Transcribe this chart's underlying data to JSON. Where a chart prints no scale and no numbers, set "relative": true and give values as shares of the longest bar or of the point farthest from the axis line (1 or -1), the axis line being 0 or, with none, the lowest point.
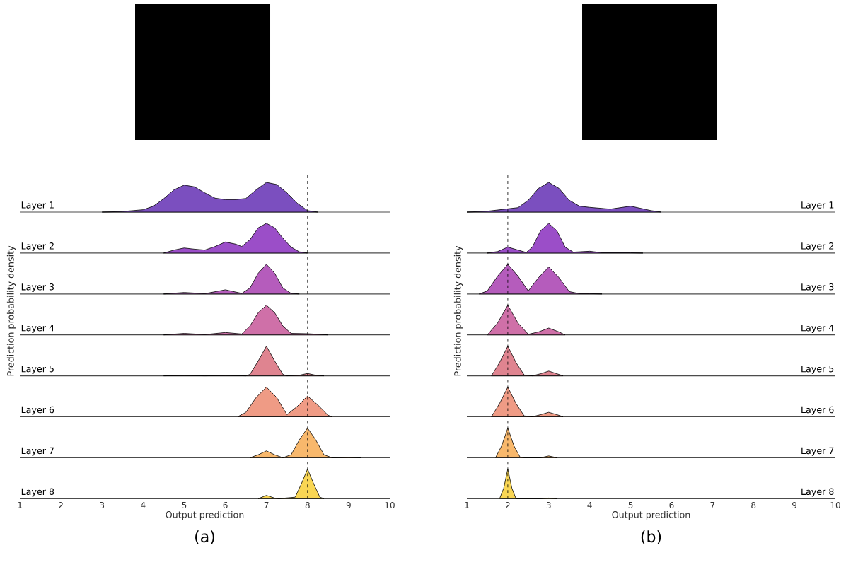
{
  "chart_data": [
    {
      "type": "area",
      "relative": true,
      "xlim": [
        1,
        10
      ],
      "tick_labels": false,
      "ref_lines": [
        {
          "axis": "x",
          "value": 8,
          "line_style": "dashed",
          "color": "#000000"
        }
      ],
      "series": [
        {
          "name": "Layer 1",
          "color": "#7b4fbf",
          "x": [
            3,
            3.5,
            4,
            4.25,
            4.5,
            4.75,
            5,
            5.25,
            5.5,
            5.75,
            6,
            6.25,
            6.5,
            6.75,
            7,
            7.25,
            7.5,
            7.75,
            8,
            8.25
          ],
          "values": [
            0,
            0.02,
            0.08,
            0.2,
            0.45,
            0.75,
            0.91,
            0.85,
            0.65,
            0.47,
            0.42,
            0.42,
            0.46,
            0.75,
            1.0,
            0.93,
            0.65,
            0.3,
            0.05,
            0
          ]
        }
      ]
    },
    {
      "type": "area",
      "relative": true,
      "xlim": [
        1,
        10
      ],
      "tick_labels": false,
      "ref_lines": [
        {
          "axis": "x",
          "value": 8,
          "line_style": "dashed",
          "color": "#000000"
        }
      ],
      "series": [
        {
          "name": "Layer 2",
          "color": "#9b4ec8",
          "x": [
            4.5,
            4.75,
            5,
            5.25,
            5.5,
            5.75,
            6,
            6.25,
            6.4,
            6.6,
            6.8,
            7,
            7.2,
            7.4,
            7.6,
            7.8,
            8
          ],
          "values": [
            0,
            0.1,
            0.17,
            0.13,
            0.1,
            0.22,
            0.37,
            0.3,
            0.22,
            0.45,
            0.85,
            1.0,
            0.85,
            0.5,
            0.2,
            0.04,
            0
          ]
        }
      ]
    },
    {
      "type": "area",
      "relative": true,
      "xlim": [
        1,
        10
      ],
      "tick_labels": false,
      "ref_lines": [
        {
          "axis": "x",
          "value": 8,
          "line_style": "dashed",
          "color": "#000000"
        }
      ],
      "series": [
        {
          "name": "Layer 3",
          "color": "#b55cbc",
          "x": [
            4.5,
            5,
            5.5,
            6,
            6.4,
            6.6,
            6.8,
            7,
            7.2,
            7.4,
            7.6,
            7.8
          ],
          "values": [
            0,
            0.05,
            0.01,
            0.14,
            0.02,
            0.2,
            0.7,
            1.0,
            0.7,
            0.2,
            0.02,
            0
          ]
        }
      ]
    },
    {
      "type": "area",
      "relative": true,
      "xlim": [
        1,
        10
      ],
      "tick_labels": false,
      "ref_lines": [
        {
          "axis": "x",
          "value": 8,
          "line_style": "dashed",
          "color": "#000000"
        }
      ],
      "series": [
        {
          "name": "Layer 4",
          "color": "#cf70a8",
          "x": [
            4.5,
            5,
            5.5,
            6,
            6.4,
            6.6,
            6.8,
            7,
            7.2,
            7.4,
            7.6,
            8,
            8.5
          ],
          "values": [
            0,
            0.05,
            0.01,
            0.08,
            0.03,
            0.3,
            0.75,
            1.0,
            0.75,
            0.3,
            0.05,
            0.04,
            0
          ]
        }
      ]
    },
    {
      "type": "area",
      "relative": true,
      "xlim": [
        1,
        10
      ],
      "tick_labels": false,
      "ylabel": "Prediction probability density",
      "ref_lines": [
        {
          "axis": "x",
          "value": 8,
          "line_style": "dashed",
          "color": "#000000"
        }
      ],
      "series": [
        {
          "name": "Layer 5",
          "color": "#df8490",
          "x": [
            4.5,
            5,
            5.5,
            6,
            6.5,
            6.6,
            6.8,
            7,
            7.2,
            7.4,
            7.5,
            7.8,
            8,
            8.2,
            8.4
          ],
          "values": [
            0,
            0.01,
            0,
            0.01,
            0,
            0.05,
            0.5,
            1.0,
            0.5,
            0.05,
            0,
            0.02,
            0.08,
            0.02,
            0
          ]
        }
      ]
    },
    {
      "type": "area",
      "relative": true,
      "xlim": [
        1,
        10
      ],
      "tick_labels": false,
      "ref_lines": [
        {
          "axis": "x",
          "value": 8,
          "line_style": "dashed",
          "color": "#000000"
        }
      ],
      "series": [
        {
          "name": "Layer 6",
          "color": "#ef9b85",
          "x": [
            6.3,
            6.5,
            6.75,
            7,
            7.25,
            7.5,
            7.75,
            8,
            8.25,
            8.5,
            8.6
          ],
          "values": [
            0,
            0.15,
            0.65,
            1.0,
            0.65,
            0.07,
            0.35,
            0.7,
            0.4,
            0.05,
            0
          ]
        }
      ]
    },
    {
      "type": "area",
      "relative": true,
      "xlim": [
        1,
        10
      ],
      "tick_labels": false,
      "ref_lines": [
        {
          "axis": "x",
          "value": 8,
          "line_style": "dashed",
          "color": "#000000"
        }
      ],
      "series": [
        {
          "name": "Layer 7",
          "color": "#f8b86c",
          "x": [
            6.6,
            6.8,
            7,
            7.2,
            7.4,
            7.6,
            7.8,
            8,
            8.2,
            8.4,
            8.6,
            9,
            9.3
          ],
          "values": [
            0,
            0.1,
            0.23,
            0.1,
            0,
            0.1,
            0.6,
            1.0,
            0.6,
            0.1,
            0,
            0.01,
            0
          ]
        }
      ]
    },
    {
      "type": "area",
      "relative": true,
      "xlim": [
        1,
        10
      ],
      "xticks": [
        1,
        2,
        3,
        4,
        5,
        6,
        7,
        8,
        9,
        10
      ],
      "tick_labels": "x",
      "xlabel": "Output prediction",
      "annotations": [
        "(a)"
      ],
      "ref_lines": [
        {
          "axis": "x",
          "value": 8,
          "line_style": "dashed",
          "color": "#000000"
        }
      ],
      "series": [
        {
          "name": "Layer 8",
          "color": "#f9d654",
          "x": [
            6.8,
            7,
            7.2,
            7.3,
            7.7,
            7.85,
            8,
            8.15,
            8.3,
            8.4
          ],
          "values": [
            0,
            0.11,
            0.02,
            0,
            0.05,
            0.5,
            1.0,
            0.5,
            0.05,
            0
          ]
        }
      ]
    },
    {
      "type": "area",
      "relative": true,
      "xlim": [
        1,
        10
      ],
      "tick_labels": false,
      "ref_lines": [
        {
          "axis": "x",
          "value": 2,
          "line_style": "dashed",
          "color": "#000000"
        }
      ],
      "series": [
        {
          "name": "Layer 1",
          "color": "#7b4fbf",
          "x": [
            1,
            1.5,
            2,
            2.25,
            2.5,
            2.75,
            3,
            3.25,
            3.5,
            3.75,
            4,
            4.5,
            5,
            5.5,
            5.75
          ],
          "values": [
            0,
            0.03,
            0.11,
            0.15,
            0.4,
            0.8,
            1.0,
            0.8,
            0.4,
            0.2,
            0.16,
            0.1,
            0.2,
            0.05,
            0
          ]
        }
      ]
    },
    {
      "type": "area",
      "relative": true,
      "xlim": [
        1,
        10
      ],
      "tick_labels": false,
      "ref_lines": [
        {
          "axis": "x",
          "value": 2,
          "line_style": "dashed",
          "color": "#000000"
        }
      ],
      "series": [
        {
          "name": "Layer 2",
          "color": "#9b4ec8",
          "x": [
            1.5,
            1.75,
            2,
            2.25,
            2.45,
            2.6,
            2.8,
            3,
            3.2,
            3.4,
            3.6,
            4,
            4.3,
            5,
            5.3
          ],
          "values": [
            0,
            0.05,
            0.2,
            0.1,
            0.02,
            0.2,
            0.75,
            1.0,
            0.75,
            0.2,
            0.03,
            0.06,
            0.01,
            0.01,
            0
          ]
        }
      ]
    },
    {
      "type": "area",
      "relative": true,
      "xlim": [
        1,
        10
      ],
      "tick_labels": false,
      "ref_lines": [
        {
          "axis": "x",
          "value": 2,
          "line_style": "dashed",
          "color": "#000000"
        }
      ],
      "series": [
        {
          "name": "Layer 3",
          "color": "#b55cbc",
          "x": [
            1.3,
            1.5,
            1.75,
            2,
            2.25,
            2.5,
            2.75,
            3,
            3.25,
            3.5,
            3.75,
            4,
            4.3
          ],
          "values": [
            0,
            0.1,
            0.6,
            1.0,
            0.6,
            0.1,
            0.55,
            0.91,
            0.55,
            0.08,
            0.01,
            0.01,
            0
          ]
        }
      ]
    },
    {
      "type": "area",
      "relative": true,
      "xlim": [
        1,
        10
      ],
      "tick_labels": false,
      "ref_lines": [
        {
          "axis": "x",
          "value": 2,
          "line_style": "dashed",
          "color": "#000000"
        }
      ],
      "series": [
        {
          "name": "Layer 4",
          "color": "#cf70a8",
          "x": [
            1.5,
            1.75,
            2,
            2.25,
            2.5,
            2.75,
            3,
            3.25,
            3.4
          ],
          "values": [
            0,
            0.4,
            1.0,
            0.4,
            0.02,
            0.1,
            0.23,
            0.1,
            0
          ]
        }
      ]
    },
    {
      "type": "area",
      "relative": true,
      "xlim": [
        1,
        10
      ],
      "tick_labels": false,
      "ylabel": "Prediction probability density",
      "ref_lines": [
        {
          "axis": "x",
          "value": 2,
          "line_style": "dashed",
          "color": "#000000"
        }
      ],
      "series": [
        {
          "name": "Layer 5",
          "color": "#df8490",
          "x": [
            1.6,
            1.8,
            2,
            2.2,
            2.4,
            2.6,
            2.8,
            3,
            3.2,
            3.35
          ],
          "values": [
            0,
            0.45,
            1.0,
            0.45,
            0.03,
            0,
            0.07,
            0.16,
            0.07,
            0
          ]
        }
      ]
    },
    {
      "type": "area",
      "relative": true,
      "xlim": [
        1,
        10
      ],
      "tick_labels": false,
      "ref_lines": [
        {
          "axis": "x",
          "value": 2,
          "line_style": "dashed",
          "color": "#000000"
        }
      ],
      "series": [
        {
          "name": "Layer 6",
          "color": "#ef9b85",
          "x": [
            1.6,
            1.8,
            2,
            2.2,
            2.4,
            2.6,
            2.8,
            3,
            3.2,
            3.35
          ],
          "values": [
            0,
            0.45,
            1.0,
            0.45,
            0.03,
            0,
            0.07,
            0.15,
            0.07,
            0
          ]
        }
      ]
    },
    {
      "type": "area",
      "relative": true,
      "xlim": [
        1,
        10
      ],
      "tick_labels": false,
      "ref_lines": [
        {
          "axis": "x",
          "value": 2,
          "line_style": "dashed",
          "color": "#000000"
        }
      ],
      "series": [
        {
          "name": "Layer 7",
          "color": "#f8b86c",
          "x": [
            1.7,
            1.85,
            2,
            2.15,
            2.3,
            2.4,
            2.8,
            3,
            3.2
          ],
          "values": [
            0,
            0.4,
            1.0,
            0.4,
            0.02,
            0,
            0,
            0.06,
            0
          ]
        }
      ]
    },
    {
      "type": "area",
      "relative": true,
      "xlim": [
        1,
        10
      ],
      "xticks": [
        1,
        2,
        3,
        4,
        5,
        6,
        7,
        8,
        9,
        10
      ],
      "tick_labels": "x",
      "xlabel": "Output prediction",
      "annotations": [
        "(b)"
      ],
      "ref_lines": [
        {
          "axis": "x",
          "value": 2,
          "line_style": "dashed",
          "color": "#000000"
        }
      ],
      "series": [
        {
          "name": "Layer 8",
          "color": "#f9d654",
          "x": [
            1.8,
            1.9,
            2,
            2.1,
            2.2,
            2.8,
            3,
            3.2
          ],
          "values": [
            0,
            0.35,
            1.0,
            0.35,
            0,
            0,
            0.02,
            0
          ]
        }
      ]
    }
  ]
}
